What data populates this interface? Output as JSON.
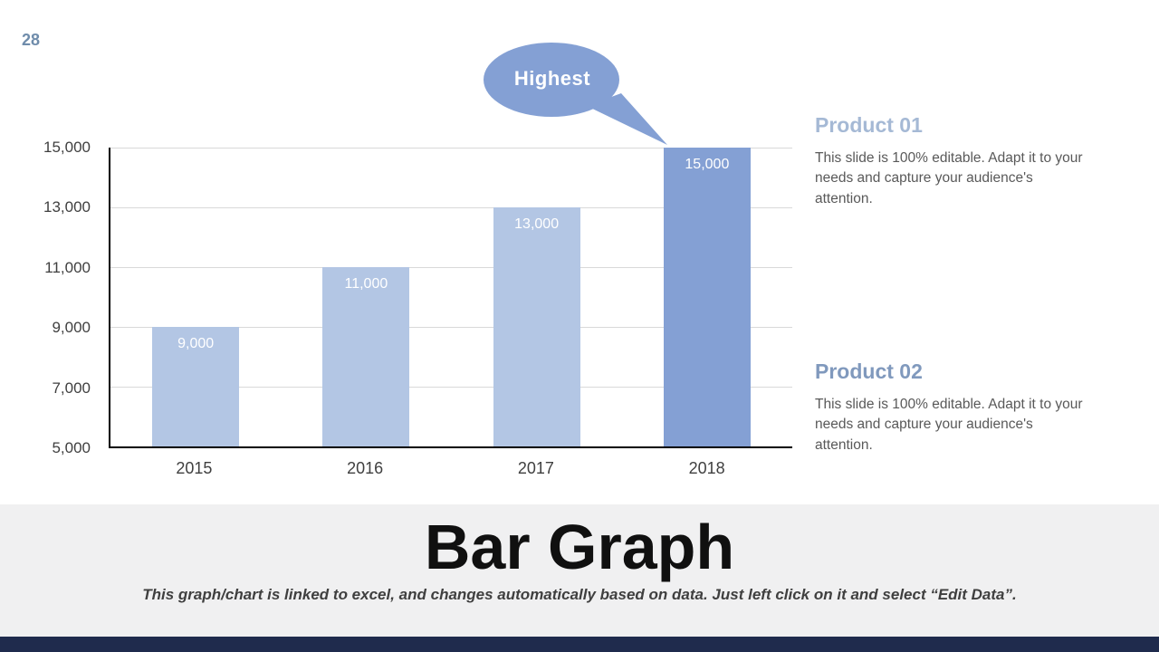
{
  "slide": {
    "page_number": "28",
    "title": "Bar Graph",
    "subtitle": "This graph/chart is linked to excel, and changes automatically based on data. Just left click on it and select “Edit Data”."
  },
  "chart_data": {
    "type": "bar",
    "categories": [
      "2015",
      "2016",
      "2017",
      "2018"
    ],
    "values": [
      9000,
      11000,
      13000,
      15000
    ],
    "value_labels": [
      "9,000",
      "11,000",
      "13,000",
      "15,000"
    ],
    "y_ticks": [
      "15,000",
      "13,000",
      "11,000",
      "9,000",
      "7,000",
      "5,000"
    ],
    "ylim": [
      5000,
      15000
    ],
    "grid": true,
    "legend": "none",
    "annotation": "Highest",
    "annotation_target": "2018",
    "highlight_index": 3,
    "bar_color": "#b3c6e4",
    "highlight_color": "#84a0d4",
    "callout_color": "#84a0d4"
  },
  "sidebar": {
    "sections": [
      {
        "heading": "Product 01",
        "body": "This slide is 100% editable. Adapt it to your needs and capture your audience's attention."
      },
      {
        "heading": "Product 02",
        "body": "This slide is 100% editable. Adapt it to your needs and capture your audience's attention."
      }
    ]
  },
  "colors": {
    "page_number": "#6f8cab",
    "gridline": "#d9d9d9",
    "axis": "#000000",
    "footer_band": "#f0f0f1",
    "bottom_strip": "#1f2b4d"
  }
}
